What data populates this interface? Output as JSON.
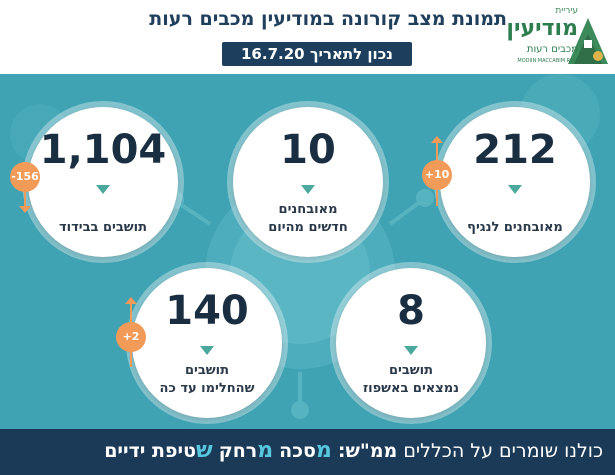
{
  "header": {
    "title": "תמונת מצב קורונה במודיעין מכבים רעות",
    "date": "נכון לתאריך 16.7.20"
  },
  "logo": {
    "line1": "עיריית",
    "line2": "מודיעין",
    "line3": "מכבים רעות",
    "line4": "MODIIN MACCABIM REUT"
  },
  "stats": {
    "quarantine": {
      "value": "1,104",
      "label": "תושבים בבידוד",
      "change": "-156"
    },
    "new_cases": {
      "value": "10",
      "label_line1": "מאובחנים",
      "label_line2": "חדשים מהיום"
    },
    "active": {
      "value": "212",
      "label": "מאובחנים לנגיף",
      "change": "+10"
    },
    "recovered": {
      "value": "140",
      "label_line1": "תושבים",
      "label_line2": "שהחלימו עד כה",
      "change": "+2"
    },
    "hospitalized": {
      "value": "8",
      "label_line1": "תושבים",
      "label_line2": "נמצאים באשפוז"
    }
  },
  "footer": {
    "intro": "כולנו שומרים על הכללים",
    "mm": "ממ\"ש:",
    "mem1": "מ",
    "w1": "סכה",
    "mem2": "מ",
    "w2": "רחק",
    "shin": "ש",
    "w3": "טיפת ידיים"
  },
  "colors": {
    "background": "#3fa3b3",
    "navy": "#1b3a57",
    "accent_orange": "#f29a57",
    "triangle": "#4aa89c",
    "footer_accent": "#57c7dd"
  }
}
